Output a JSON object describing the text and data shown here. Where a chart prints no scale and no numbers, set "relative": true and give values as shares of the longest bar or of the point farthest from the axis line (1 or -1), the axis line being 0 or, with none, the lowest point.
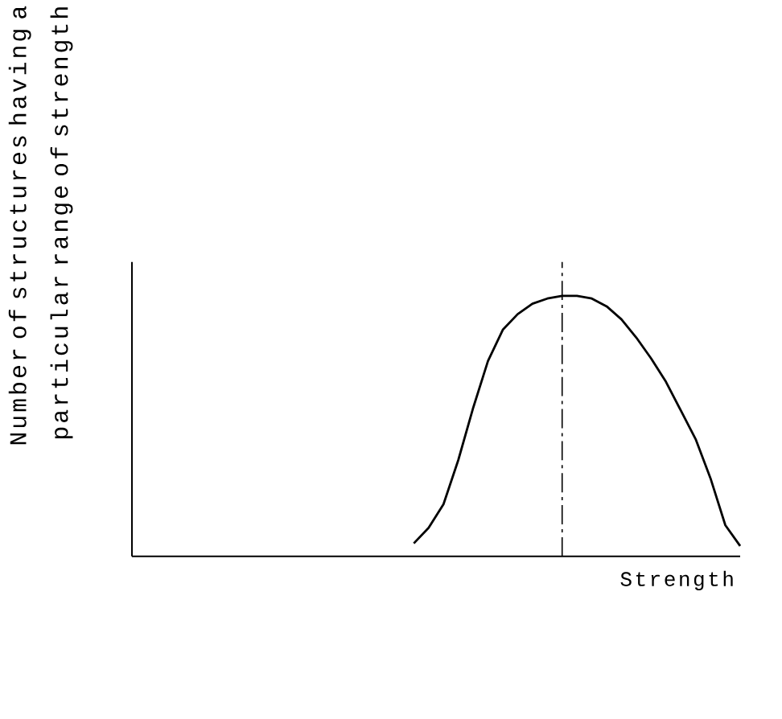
{
  "chart_data": {
    "type": "line",
    "relative": true,
    "ylabel": "Number of structures having a particular range of strength",
    "xlabel": "Strength",
    "categories": [
      null,
      null,
      null,
      null,
      null,
      null,
      null,
      null,
      null,
      null,
      null,
      null,
      null,
      null,
      null,
      null,
      null,
      null,
      null,
      null,
      null,
      null,
      null,
      null,
      null,
      null,
      null,
      null,
      null,
      null,
      null,
      null,
      null,
      null,
      null,
      null,
      null,
      null,
      null,
      null,
      null,
      null
    ],
    "series": [
      {
        "color": "#000000",
        "values": [
          null,
          null,
          null,
          null,
          null,
          null,
          null,
          null,
          null,
          null,
          null,
          null,
          null,
          null,
          null,
          null,
          null,
          null,
          null,
          0.05,
          0.11,
          0.2,
          0.37,
          0.57,
          0.75,
          0.87,
          0.93,
          0.97,
          0.99,
          1.0,
          1.0,
          0.99,
          0.96,
          0.91,
          0.84,
          0.76,
          0.67,
          0.56,
          0.45,
          0.3,
          0.12,
          0.04
        ]
      }
    ]
  }
}
